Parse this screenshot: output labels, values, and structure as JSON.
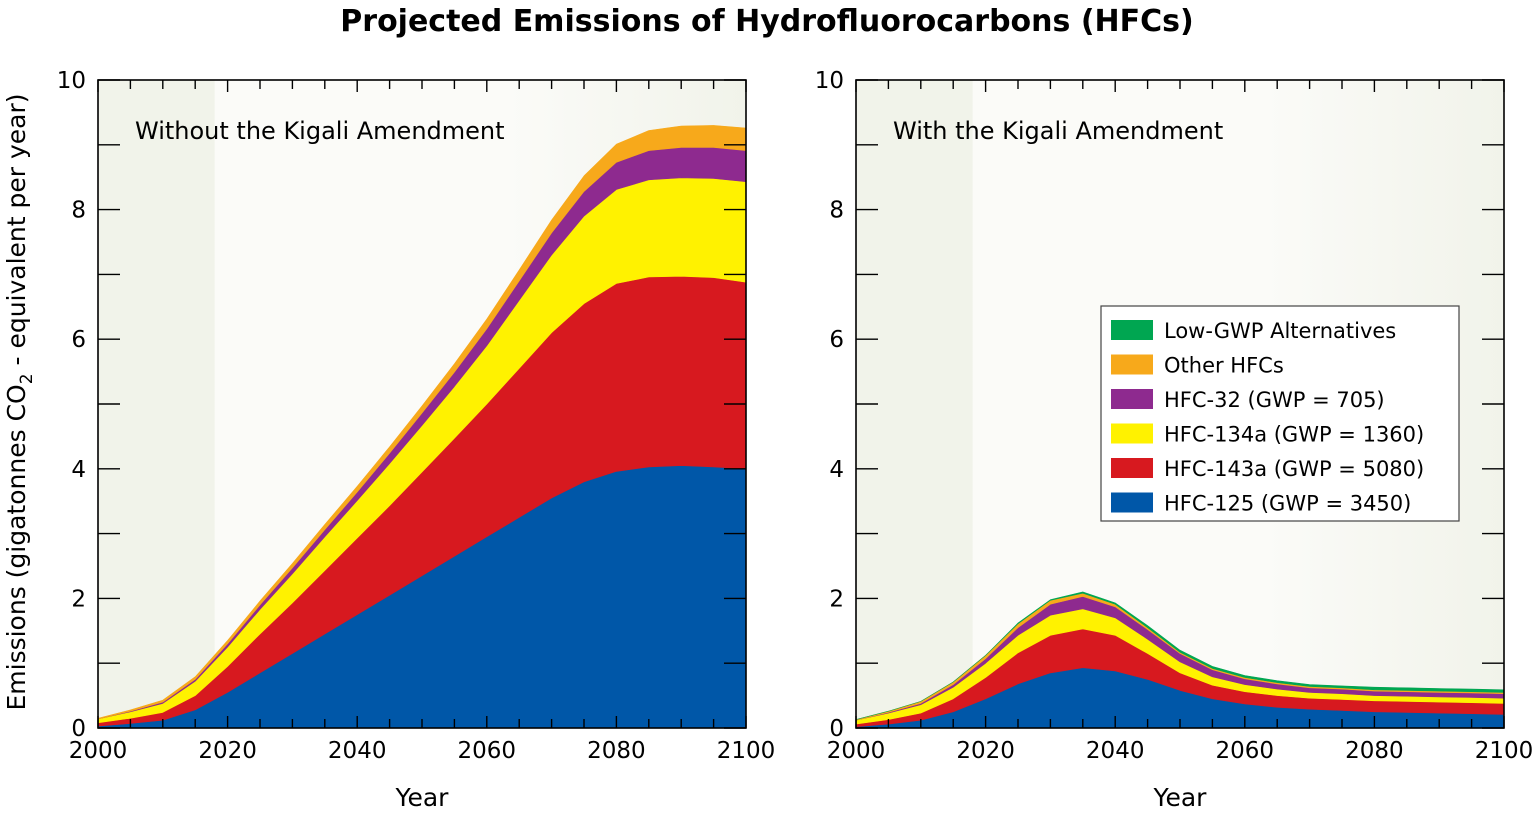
{
  "figure": {
    "title": "Projected Emissions of Hydrofluorocarbons (HFCs)",
    "ylabel_prefix": "Emissions (gigatonnes CO",
    "ylabel_sub": "2",
    "ylabel_suffix": " - equivalent per year)"
  },
  "chart_data": [
    {
      "type": "area",
      "stacked": true,
      "panel_label": "Without the Kigali Amendment",
      "xlabel": "Year",
      "xlim": [
        2000,
        2100
      ],
      "ylim": [
        0,
        10
      ],
      "x_ticks": [
        2000,
        2020,
        2040,
        2060,
        2080,
        2100
      ],
      "y_ticks": [
        0,
        2,
        4,
        6,
        8,
        10
      ],
      "historical_shading_until": 2018,
      "x": [
        2000,
        2005,
        2010,
        2015,
        2020,
        2025,
        2030,
        2035,
        2040,
        2045,
        2050,
        2055,
        2060,
        2065,
        2070,
        2075,
        2080,
        2085,
        2090,
        2095,
        2100
      ],
      "series": [
        {
          "name": "HFC-125 (GWP = 3450)",
          "color": "#0057a8",
          "values": [
            0.03,
            0.07,
            0.12,
            0.28,
            0.55,
            0.85,
            1.15,
            1.45,
            1.75,
            2.05,
            2.35,
            2.65,
            2.95,
            3.25,
            3.55,
            3.8,
            3.96,
            4.03,
            4.05,
            4.03,
            4.0
          ]
        },
        {
          "name": "HFC-143a (GWP = 5080)",
          "color": "#d7191f",
          "values": [
            0.05,
            0.08,
            0.12,
            0.22,
            0.4,
            0.6,
            0.78,
            0.98,
            1.18,
            1.38,
            1.6,
            1.82,
            2.05,
            2.3,
            2.55,
            2.75,
            2.9,
            2.93,
            2.92,
            2.92,
            2.88
          ]
        },
        {
          "name": "HFC-134a (GWP = 1360)",
          "color": "#fff200",
          "values": [
            0.06,
            0.1,
            0.14,
            0.22,
            0.3,
            0.38,
            0.45,
            0.52,
            0.58,
            0.65,
            0.72,
            0.8,
            0.9,
            1.05,
            1.2,
            1.35,
            1.45,
            1.5,
            1.52,
            1.53,
            1.55
          ]
        },
        {
          "name": "HFC-32 (GWP = 705)",
          "color": "#8e2a8f",
          "values": [
            0.0,
            0.01,
            0.02,
            0.03,
            0.05,
            0.07,
            0.09,
            0.11,
            0.13,
            0.16,
            0.19,
            0.22,
            0.26,
            0.3,
            0.34,
            0.38,
            0.42,
            0.45,
            0.47,
            0.48,
            0.48
          ]
        },
        {
          "name": "Other HFCs",
          "color": "#f7a91b",
          "values": [
            0.01,
            0.02,
            0.03,
            0.04,
            0.05,
            0.06,
            0.07,
            0.08,
            0.09,
            0.1,
            0.11,
            0.13,
            0.15,
            0.17,
            0.2,
            0.24,
            0.28,
            0.31,
            0.33,
            0.34,
            0.35
          ]
        }
      ]
    },
    {
      "type": "area",
      "stacked": true,
      "panel_label": "With the Kigali Amendment",
      "xlabel": "Year",
      "xlim": [
        2000,
        2100
      ],
      "ylim": [
        0,
        10
      ],
      "x_ticks": [
        2000,
        2020,
        2040,
        2060,
        2080,
        2100
      ],
      "y_ticks": [
        0,
        2,
        4,
        6,
        8,
        10
      ],
      "historical_shading_until": 2018,
      "x": [
        2000,
        2005,
        2010,
        2015,
        2020,
        2025,
        2030,
        2035,
        2040,
        2045,
        2050,
        2055,
        2060,
        2065,
        2070,
        2075,
        2080,
        2085,
        2090,
        2095,
        2100
      ],
      "series": [
        {
          "name": "HFC-125 (GWP = 3450)",
          "color": "#0057a8",
          "values": [
            0.02,
            0.06,
            0.12,
            0.25,
            0.45,
            0.68,
            0.85,
            0.93,
            0.88,
            0.75,
            0.58,
            0.45,
            0.37,
            0.32,
            0.29,
            0.27,
            0.25,
            0.24,
            0.23,
            0.22,
            0.21
          ]
        },
        {
          "name": "HFC-143a (GWP = 5080)",
          "color": "#d7191f",
          "values": [
            0.04,
            0.07,
            0.11,
            0.2,
            0.33,
            0.48,
            0.58,
            0.6,
            0.55,
            0.4,
            0.27,
            0.21,
            0.19,
            0.18,
            0.17,
            0.17,
            0.17,
            0.17,
            0.17,
            0.17,
            0.17
          ]
        },
        {
          "name": "HFC-134a (GWP = 1360)",
          "color": "#fff200",
          "values": [
            0.06,
            0.1,
            0.13,
            0.18,
            0.22,
            0.27,
            0.31,
            0.31,
            0.27,
            0.22,
            0.17,
            0.13,
            0.11,
            0.1,
            0.09,
            0.09,
            0.08,
            0.08,
            0.08,
            0.08,
            0.08
          ]
        },
        {
          "name": "HFC-32 (GWP = 705)",
          "color": "#8e2a8f",
          "values": [
            0.0,
            0.01,
            0.02,
            0.04,
            0.07,
            0.12,
            0.17,
            0.19,
            0.17,
            0.15,
            0.13,
            0.11,
            0.09,
            0.08,
            0.07,
            0.07,
            0.07,
            0.07,
            0.07,
            0.07,
            0.07
          ]
        },
        {
          "name": "Other HFCs",
          "color": "#f7a91b",
          "values": [
            0.01,
            0.02,
            0.03,
            0.04,
            0.05,
            0.06,
            0.06,
            0.05,
            0.04,
            0.03,
            0.02,
            0.02,
            0.02,
            0.02,
            0.02,
            0.02,
            0.02,
            0.02,
            0.02,
            0.02,
            0.02
          ]
        },
        {
          "name": "Low-GWP Alternatives",
          "color": "#00a651",
          "values": [
            0.0,
            0.0,
            0.0,
            0.0,
            0.0,
            0.01,
            0.01,
            0.02,
            0.02,
            0.03,
            0.03,
            0.03,
            0.03,
            0.03,
            0.03,
            0.03,
            0.04,
            0.04,
            0.04,
            0.04,
            0.04
          ]
        }
      ]
    }
  ],
  "legend": {
    "entries": [
      {
        "label": "Low-GWP Alternatives",
        "color": "#00a651"
      },
      {
        "label": "Other HFCs",
        "color": "#f7a91b"
      },
      {
        "label": "HFC-32 (GWP = 705)",
        "color": "#8e2a8f"
      },
      {
        "label": "HFC-134a (GWP = 1360)",
        "color": "#fff200"
      },
      {
        "label": "HFC-143a (GWP = 5080)",
        "color": "#d7191f"
      },
      {
        "label": "HFC-125 (GWP = 3450)",
        "color": "#0057a8"
      }
    ],
    "placement": "right panel, center-right"
  },
  "colors": {
    "plot_background": "#f1f3ea",
    "projection_background": "#fbfbf8"
  }
}
